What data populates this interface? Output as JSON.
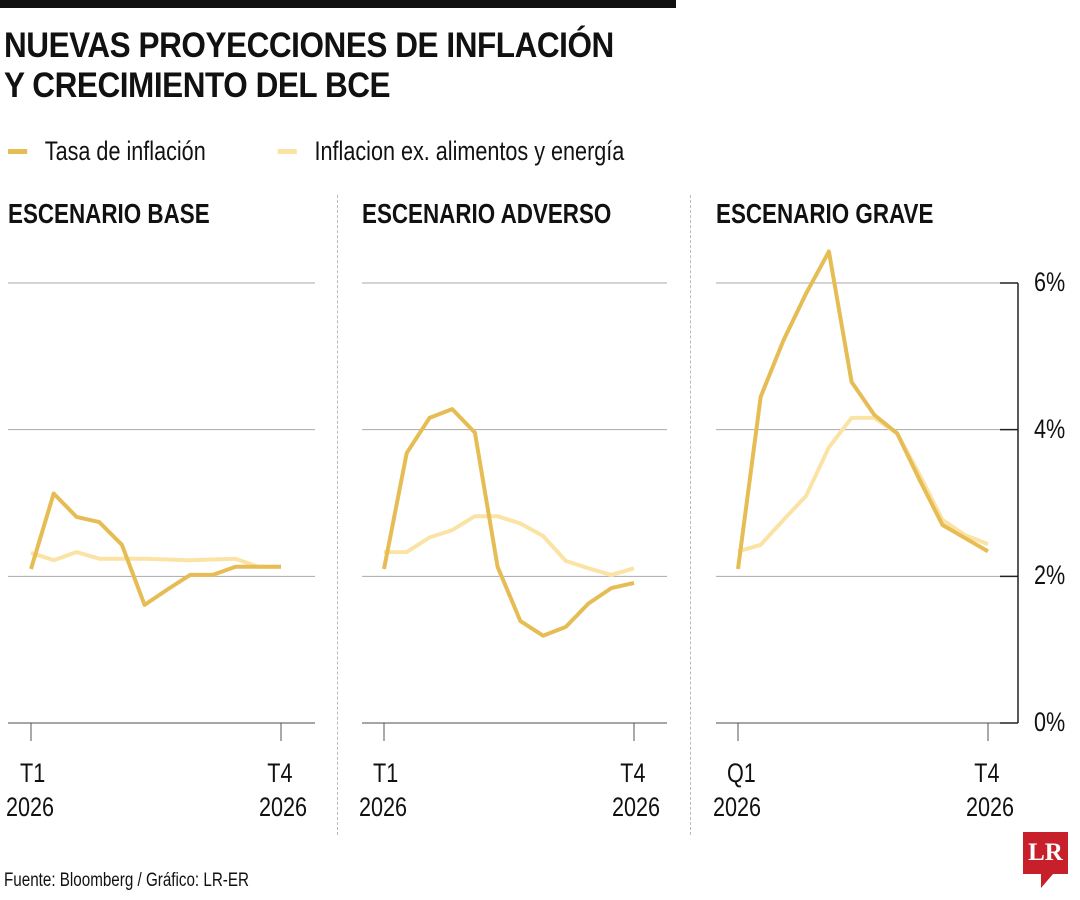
{
  "chart_data": {
    "type": "line",
    "title": "NUEVAS PROYECCIONES DE INFLACIÓN Y CRECIMIENTO DEL BCE",
    "title_lines": [
      "NUEVAS PROYECCIONES DE INFLACIÓN",
      "Y CRECIMIENTO DEL BCE"
    ],
    "legend": [
      {
        "name": "Tasa de inflación",
        "color": "#e6bd55"
      },
      {
        "name": "Inflacion ex. alimentos y energía",
        "color": "#fbe3a6"
      }
    ],
    "legend_placement": "top-left",
    "ylim": [
      0,
      6
    ],
    "yticks": [
      "6%",
      "4%",
      "2%",
      "0%"
    ],
    "ytick_values": [
      6,
      4,
      2,
      0
    ],
    "grid": true,
    "panels": [
      {
        "title": "ESCENARIO BASE",
        "xtick_start": [
          "T1",
          "2026"
        ],
        "xtick_end": [
          "T4",
          "2026"
        ],
        "series": [
          {
            "name": "Tasa de inflación",
            "values": [
              2.1,
              3.13,
              2.81,
              2.74,
              2.43,
              1.61,
              1.82,
              2.02,
              2.02,
              2.13,
              2.13,
              2.13
            ]
          },
          {
            "name": "Inflacion ex. alimentos y energía",
            "values": [
              2.32,
              2.22,
              2.33,
              2.24,
              2.24,
              2.24,
              2.23,
              2.22,
              2.23,
              2.24,
              2.13,
              2.13
            ]
          }
        ]
      },
      {
        "title": "ESCENARIO ADVERSO",
        "xtick_start": [
          "T1",
          "2026"
        ],
        "xtick_end": [
          "T4",
          "2026"
        ],
        "series": [
          {
            "name": "Tasa de inflación",
            "values": [
              2.1,
              3.68,
              4.16,
              4.28,
              3.96,
              2.13,
              1.39,
              1.19,
              1.31,
              1.63,
              1.84,
              1.91
            ]
          },
          {
            "name": "Inflacion ex. alimentos y energía",
            "values": [
              2.33,
              2.33,
              2.53,
              2.63,
              2.82,
              2.82,
              2.72,
              2.55,
              2.21,
              2.11,
              2.02,
              2.11
            ]
          }
        ]
      },
      {
        "title": "ESCENARIO GRAVE",
        "xtick_start": [
          "Q1",
          "2026"
        ],
        "xtick_end": [
          "T4",
          "2026"
        ],
        "series": [
          {
            "name": "Tasa de inflación",
            "values": [
              2.1,
              4.45,
              5.22,
              5.86,
              6.43,
              4.65,
              4.2,
              3.95,
              3.31,
              2.7,
              2.52,
              2.34
            ]
          },
          {
            "name": "Inflacion ex. alimentos y energía",
            "values": [
              2.34,
              2.43,
              2.77,
              3.1,
              3.76,
              4.16,
              4.16,
              3.95,
              3.38,
              2.77,
              2.56,
              2.44
            ]
          }
        ]
      }
    ]
  },
  "footer": {
    "source": "Fuente: Bloomberg / Gráfico: LR-ER",
    "logo": "LR"
  },
  "colors": {
    "main": "#e6bd55",
    "light": "#fbe3a6",
    "grid": "#aaaaaa",
    "logo": "#c8202a"
  }
}
